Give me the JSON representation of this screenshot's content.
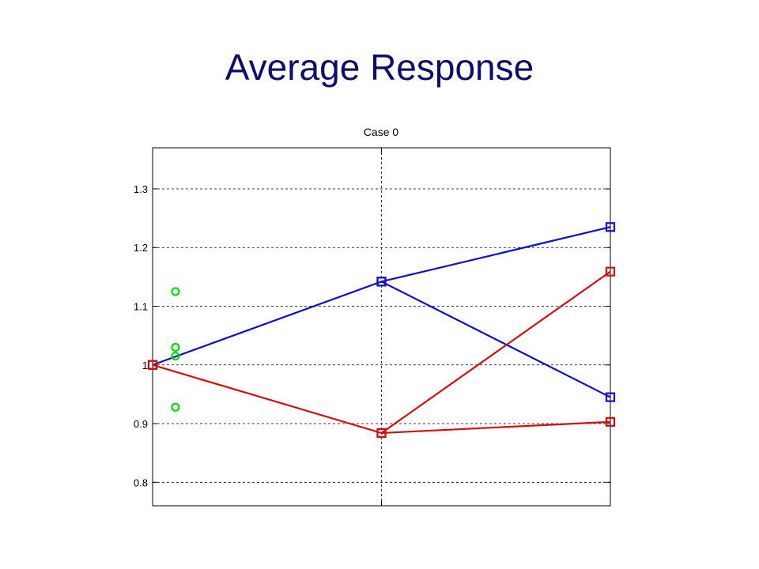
{
  "slide": {
    "title": "Average Response"
  },
  "chart_data": {
    "type": "line",
    "title": "Case 0",
    "xlabel": "",
    "ylabel": "",
    "x": [
      1,
      2,
      3
    ],
    "xlim": [
      1,
      3
    ],
    "ylim": [
      0.76,
      1.37
    ],
    "yticks": [
      0.8,
      0.9,
      1,
      1.1,
      1.2,
      1.3
    ],
    "ytick_labels": [
      "0.8",
      "0.9",
      "1",
      "1.1",
      "1.2",
      "1.3"
    ],
    "grid": true,
    "series": [
      {
        "color": "#1010c0",
        "marker": "square",
        "points": [
          [
            1,
            1.0
          ],
          [
            2,
            1.142
          ],
          [
            3,
            1.235
          ]
        ]
      },
      {
        "color": "#1010c0",
        "marker": "square",
        "points": [
          [
            2,
            1.142
          ],
          [
            3,
            0.945
          ]
        ]
      },
      {
        "color": "#d01010",
        "marker": "square",
        "points": [
          [
            1,
            1.0
          ],
          [
            2,
            0.884
          ],
          [
            3,
            1.159
          ]
        ]
      },
      {
        "color": "#d01010",
        "marker": "square",
        "points": [
          [
            2,
            0.884
          ],
          [
            3,
            0.903
          ]
        ]
      },
      {
        "color": "#00e000",
        "marker": "circle",
        "line": false,
        "points": [
          [
            1.1,
            1.125
          ],
          [
            1.1,
            1.03
          ],
          [
            1.1,
            1.015
          ],
          [
            1.1,
            0.928
          ]
        ]
      }
    ]
  }
}
